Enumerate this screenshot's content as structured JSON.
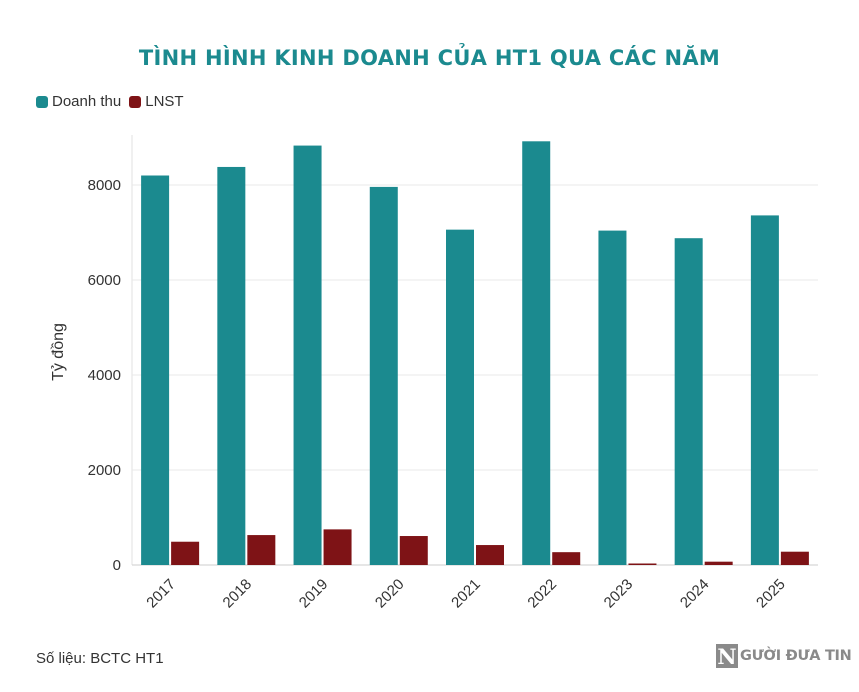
{
  "title": "TÌNH HÌNH KINH DOANH CỦA HT1 QUA CÁC NĂM",
  "source": "Số liệu: BCTC HT1",
  "logo": {
    "letter": "N",
    "text": "GƯỜI ĐƯA TIN"
  },
  "colors": {
    "title": "#1b8a8f",
    "revenue": "#1b8a8f",
    "profit": "#7e1316"
  },
  "chart_data": {
    "type": "bar",
    "categories": [
      "2017",
      "2018",
      "2019",
      "2020",
      "2021",
      "2022",
      "2023",
      "2024",
      "2025"
    ],
    "series": [
      {
        "name": "Doanh thu",
        "color": "#1b8a8f",
        "values": [
          8200,
          8380,
          8830,
          7960,
          7060,
          8920,
          7040,
          6880,
          7360
        ]
      },
      {
        "name": "LNST",
        "color": "#7e1316",
        "values": [
          490,
          630,
          750,
          610,
          420,
          270,
          30,
          70,
          280
        ]
      }
    ],
    "xlabel": "",
    "ylabel": "Tỷ đồng",
    "ylim": [
      0,
      9000
    ],
    "yticks": [
      0,
      2000,
      4000,
      6000,
      8000
    ],
    "grid": true,
    "legend": "top-left"
  }
}
